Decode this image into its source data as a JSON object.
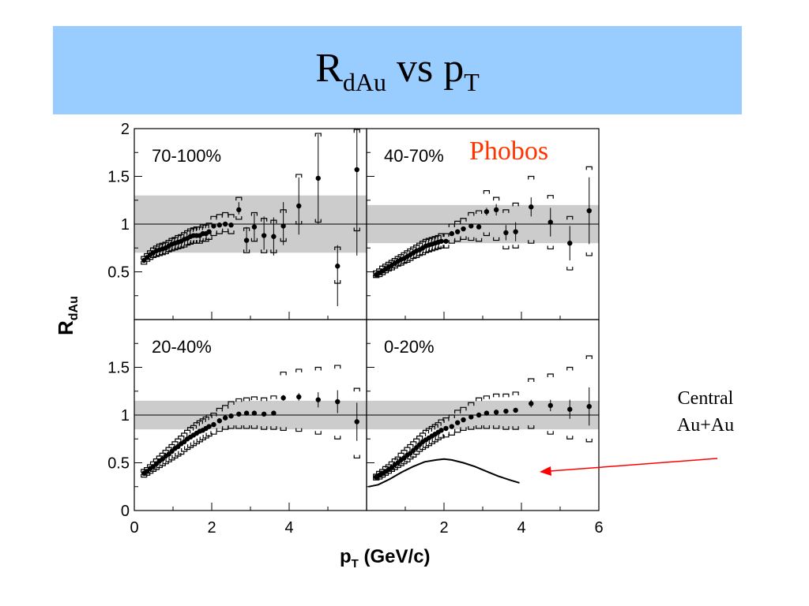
{
  "slide": {
    "title_main": "R",
    "title_sub": "dAu",
    "title_mid": " vs p",
    "title_sub2": "T",
    "phobos_label": "Phobos",
    "phobos_color": "#ff3300",
    "banner_color": "#99ccff",
    "annotation_line1": "Central",
    "annotation_line2": "Au+Au",
    "arrow_color": "#ff0000"
  },
  "chart_data": {
    "type": "scatter",
    "xlabel": "p",
    "xlabel_sub": "T",
    "xlabel_units": " (GeV/c)",
    "ylabel": "R",
    "ylabel_sub": "dAu",
    "xlim": [
      0,
      6
    ],
    "panels": [
      {
        "label": "70-100%",
        "ylim": [
          0,
          2
        ],
        "ytick_labels": [
          "0.5",
          "1",
          "1.5",
          "2"
        ],
        "yticks": [
          0.5,
          1,
          1.5,
          2
        ],
        "band": [
          0.7,
          1.3
        ],
        "x": [
          0.25,
          0.33,
          0.41,
          0.49,
          0.57,
          0.65,
          0.73,
          0.81,
          0.89,
          0.97,
          1.05,
          1.13,
          1.21,
          1.29,
          1.37,
          1.45,
          1.53,
          1.61,
          1.69,
          1.77,
          1.85,
          1.93,
          2.05,
          2.2,
          2.35,
          2.5,
          2.7,
          2.9,
          3.1,
          3.35,
          3.6,
          3.85,
          4.25,
          4.75,
          5.25,
          5.75
        ],
        "y": [
          0.62,
          0.65,
          0.68,
          0.7,
          0.72,
          0.73,
          0.74,
          0.75,
          0.77,
          0.79,
          0.8,
          0.81,
          0.82,
          0.84,
          0.85,
          0.87,
          0.88,
          0.88,
          0.88,
          0.9,
          0.9,
          0.92,
          0.98,
          0.99,
          1.0,
          0.99,
          1.15,
          0.83,
          0.97,
          0.88,
          0.87,
          0.98,
          1.19,
          1.48,
          0.56,
          1.57
        ],
        "err_lo": [
          0,
          0,
          0,
          0,
          0,
          0,
          0,
          0,
          0,
          0,
          0,
          0,
          0,
          0,
          0,
          0,
          0,
          0,
          0,
          0,
          0,
          0,
          0,
          0,
          0,
          0,
          0.05,
          0.12,
          0.15,
          0.15,
          0.2,
          0.2,
          0.3,
          0.48,
          0.42,
          0.9
        ],
        "err_hi": [
          0,
          0,
          0,
          0,
          0,
          0,
          0,
          0,
          0,
          0,
          0,
          0,
          0,
          0,
          0,
          0,
          0,
          0,
          0,
          0,
          0,
          0,
          0,
          0,
          0,
          0,
          0.08,
          0.14,
          0.14,
          0.2,
          0.2,
          0.25,
          0.3,
          0.46,
          0.22,
          0.42
        ],
        "sys_lo": [
          0.58,
          0.61,
          0.63,
          0.65,
          0.66,
          0.67,
          0.68,
          0.69,
          0.71,
          0.72,
          0.73,
          0.74,
          0.75,
          0.76,
          0.78,
          0.79,
          0.8,
          0.8,
          0.8,
          0.82,
          0.82,
          0.84,
          0.88,
          0.9,
          0.92,
          0.9,
          1.05,
          0.7,
          0.82,
          0.7,
          0.7,
          0.82,
          1.0,
          1.02,
          0.38,
          0.93
        ],
        "sys_hi": [
          0.66,
          0.69,
          0.72,
          0.75,
          0.77,
          0.79,
          0.8,
          0.81,
          0.83,
          0.85,
          0.86,
          0.88,
          0.89,
          0.91,
          0.93,
          0.95,
          0.96,
          0.97,
          0.97,
          0.99,
          0.99,
          1.01,
          1.08,
          1.1,
          1.12,
          1.1,
          1.28,
          0.96,
          1.12,
          1.06,
          1.04,
          1.15,
          1.52,
          1.95,
          0.76,
          1.99
        ]
      },
      {
        "label": "40-70%",
        "ylim": [
          0,
          2
        ],
        "ytick_labels": [],
        "yticks": [
          0.5,
          1,
          1.5,
          2
        ],
        "band": [
          0.8,
          1.2
        ],
        "x": [
          0.25,
          0.33,
          0.41,
          0.49,
          0.57,
          0.65,
          0.73,
          0.81,
          0.89,
          0.97,
          1.05,
          1.13,
          1.21,
          1.29,
          1.37,
          1.45,
          1.53,
          1.61,
          1.69,
          1.77,
          1.85,
          1.93,
          2.05,
          2.2,
          2.35,
          2.5,
          2.7,
          2.9,
          3.1,
          3.35,
          3.6,
          3.85,
          4.25,
          4.75,
          5.25,
          5.75
        ],
        "y": [
          0.47,
          0.49,
          0.51,
          0.53,
          0.55,
          0.57,
          0.59,
          0.61,
          0.63,
          0.64,
          0.66,
          0.68,
          0.7,
          0.72,
          0.73,
          0.75,
          0.77,
          0.78,
          0.79,
          0.8,
          0.81,
          0.82,
          0.82,
          0.9,
          0.92,
          0.95,
          0.98,
          0.97,
          1.13,
          1.15,
          0.91,
          0.92,
          1.18,
          1.02,
          0.8,
          1.14
        ],
        "err_lo": [
          0,
          0,
          0,
          0,
          0,
          0,
          0,
          0,
          0,
          0,
          0,
          0,
          0,
          0,
          0,
          0,
          0,
          0,
          0,
          0,
          0,
          0,
          0,
          0,
          0,
          0,
          0,
          0,
          0.04,
          0.06,
          0.08,
          0.1,
          0.1,
          0.15,
          0.18,
          0.35
        ],
        "err_hi": [
          0,
          0,
          0,
          0,
          0,
          0,
          0,
          0,
          0,
          0,
          0,
          0,
          0,
          0,
          0,
          0,
          0,
          0,
          0,
          0,
          0,
          0,
          0,
          0,
          0,
          0,
          0,
          0,
          0.04,
          0.06,
          0.08,
          0.1,
          0.1,
          0.15,
          0.18,
          0.35
        ],
        "sys_lo": [
          0.44,
          0.45,
          0.47,
          0.49,
          0.51,
          0.52,
          0.54,
          0.56,
          0.57,
          0.59,
          0.6,
          0.62,
          0.64,
          0.65,
          0.67,
          0.68,
          0.7,
          0.71,
          0.72,
          0.73,
          0.74,
          0.75,
          0.75,
          0.8,
          0.82,
          0.84,
          0.83,
          0.82,
          0.88,
          0.83,
          0.74,
          0.75,
          0.8,
          0.74,
          0.52,
          0.67
        ],
        "sys_hi": [
          0.51,
          0.53,
          0.56,
          0.58,
          0.6,
          0.62,
          0.64,
          0.66,
          0.68,
          0.7,
          0.72,
          0.74,
          0.76,
          0.78,
          0.8,
          0.82,
          0.84,
          0.85,
          0.86,
          0.87,
          0.88,
          0.9,
          0.9,
          1.0,
          1.03,
          1.06,
          1.12,
          1.14,
          1.35,
          1.28,
          1.15,
          1.22,
          1.5,
          1.3,
          1.08,
          1.6
        ]
      },
      {
        "label": "20-40%",
        "ylim": [
          0,
          2
        ],
        "ytick_labels": [
          "0",
          "0.5",
          "1",
          "1.5"
        ],
        "yticks": [
          0,
          0.5,
          1,
          1.5
        ],
        "band": [
          0.85,
          1.15
        ],
        "x": [
          0.25,
          0.33,
          0.41,
          0.49,
          0.57,
          0.65,
          0.73,
          0.81,
          0.89,
          0.97,
          1.05,
          1.13,
          1.21,
          1.29,
          1.37,
          1.45,
          1.53,
          1.61,
          1.69,
          1.77,
          1.85,
          1.93,
          2.05,
          2.2,
          2.35,
          2.5,
          2.7,
          2.9,
          3.1,
          3.35,
          3.6,
          3.85,
          4.25,
          4.75,
          5.25,
          5.75
        ],
        "y": [
          0.39,
          0.41,
          0.44,
          0.46,
          0.49,
          0.52,
          0.54,
          0.57,
          0.59,
          0.62,
          0.65,
          0.67,
          0.7,
          0.72,
          0.75,
          0.77,
          0.79,
          0.81,
          0.83,
          0.84,
          0.86,
          0.88,
          0.9,
          0.94,
          0.97,
          0.99,
          1.01,
          1.02,
          1.02,
          1.01,
          1.02,
          1.18,
          1.19,
          1.16,
          1.14,
          0.93
        ],
        "err_lo": [
          0,
          0,
          0,
          0,
          0,
          0,
          0,
          0,
          0,
          0,
          0,
          0,
          0,
          0,
          0,
          0,
          0,
          0,
          0,
          0,
          0,
          0,
          0,
          0,
          0,
          0,
          0,
          0,
          0,
          0,
          0,
          0.03,
          0.04,
          0.08,
          0.12,
          0.2
        ],
        "err_hi": [
          0,
          0,
          0,
          0,
          0,
          0,
          0,
          0,
          0,
          0,
          0,
          0,
          0,
          0,
          0,
          0,
          0,
          0,
          0,
          0,
          0,
          0,
          0,
          0,
          0,
          0,
          0,
          0,
          0,
          0,
          0,
          0.03,
          0.04,
          0.08,
          0.12,
          0.2
        ],
        "sys_lo": [
          0.35,
          0.37,
          0.39,
          0.41,
          0.43,
          0.45,
          0.47,
          0.49,
          0.51,
          0.53,
          0.55,
          0.57,
          0.59,
          0.62,
          0.64,
          0.66,
          0.68,
          0.7,
          0.72,
          0.74,
          0.76,
          0.78,
          0.8,
          0.83,
          0.85,
          0.86,
          0.86,
          0.86,
          0.86,
          0.85,
          0.85,
          0.84,
          0.83,
          0.8,
          0.75,
          0.55
        ],
        "sys_hi": [
          0.43,
          0.45,
          0.48,
          0.51,
          0.54,
          0.57,
          0.6,
          0.63,
          0.66,
          0.69,
          0.72,
          0.75,
          0.78,
          0.81,
          0.84,
          0.87,
          0.89,
          0.92,
          0.94,
          0.96,
          0.98,
          1.0,
          1.02,
          1.07,
          1.1,
          1.14,
          1.17,
          1.18,
          1.19,
          1.18,
          1.2,
          1.45,
          1.48,
          1.5,
          1.52,
          1.28
        ]
      },
      {
        "label": "0-20%",
        "ylim": [
          0,
          2
        ],
        "ytick_labels": [],
        "yticks": [
          0,
          0.5,
          1,
          1.5
        ],
        "band": [
          0.85,
          1.15
        ],
        "x": [
          0.25,
          0.33,
          0.41,
          0.49,
          0.57,
          0.65,
          0.73,
          0.81,
          0.89,
          0.97,
          1.05,
          1.13,
          1.21,
          1.29,
          1.37,
          1.45,
          1.53,
          1.61,
          1.69,
          1.77,
          1.85,
          1.93,
          2.05,
          2.2,
          2.35,
          2.5,
          2.7,
          2.9,
          3.1,
          3.35,
          3.6,
          3.85,
          4.25,
          4.75,
          5.25,
          5.75
        ],
        "y": [
          0.35,
          0.37,
          0.39,
          0.41,
          0.43,
          0.45,
          0.48,
          0.5,
          0.53,
          0.55,
          0.58,
          0.6,
          0.63,
          0.66,
          0.69,
          0.72,
          0.74,
          0.76,
          0.78,
          0.8,
          0.82,
          0.84,
          0.86,
          0.88,
          0.92,
          0.95,
          0.98,
          1.0,
          1.02,
          1.03,
          1.04,
          1.05,
          1.12,
          1.1,
          1.06,
          1.09
        ],
        "err_lo": [
          0,
          0,
          0,
          0,
          0,
          0,
          0,
          0,
          0,
          0,
          0,
          0,
          0,
          0,
          0,
          0,
          0,
          0,
          0,
          0,
          0,
          0,
          0,
          0,
          0,
          0,
          0,
          0,
          0,
          0,
          0,
          0,
          0.04,
          0.06,
          0.1,
          0.2
        ],
        "err_hi": [
          0,
          0,
          0,
          0,
          0,
          0,
          0,
          0,
          0,
          0,
          0,
          0,
          0,
          0,
          0,
          0,
          0,
          0,
          0,
          0,
          0,
          0,
          0,
          0,
          0,
          0,
          0,
          0,
          0,
          0,
          0,
          0,
          0.04,
          0.06,
          0.1,
          0.2
        ],
        "sys_lo": [
          0.32,
          0.33,
          0.35,
          0.37,
          0.39,
          0.41,
          0.43,
          0.45,
          0.47,
          0.49,
          0.51,
          0.54,
          0.56,
          0.59,
          0.62,
          0.64,
          0.66,
          0.68,
          0.7,
          0.72,
          0.74,
          0.76,
          0.77,
          0.79,
          0.82,
          0.84,
          0.85,
          0.86,
          0.86,
          0.86,
          0.85,
          0.85,
          0.86,
          0.8,
          0.75,
          0.72
        ],
        "sys_hi": [
          0.38,
          0.41,
          0.43,
          0.46,
          0.48,
          0.51,
          0.54,
          0.56,
          0.6,
          0.63,
          0.66,
          0.69,
          0.72,
          0.75,
          0.78,
          0.81,
          0.84,
          0.86,
          0.88,
          0.9,
          0.92,
          0.95,
          0.97,
          1.0,
          1.05,
          1.08,
          1.13,
          1.18,
          1.2,
          1.22,
          1.22,
          1.24,
          1.38,
          1.43,
          1.5,
          1.62
        ],
        "curve": {
          "x": [
            0.05,
            0.3,
            0.6,
            0.9,
            1.2,
            1.5,
            1.8,
            2.0,
            2.2,
            2.5,
            2.8,
            3.1,
            3.4,
            3.7,
            3.95
          ],
          "y": [
            0.25,
            0.27,
            0.33,
            0.4,
            0.46,
            0.51,
            0.53,
            0.54,
            0.53,
            0.5,
            0.46,
            0.41,
            0.36,
            0.32,
            0.29
          ]
        }
      }
    ],
    "xtick_labels_left": [
      "0",
      "2",
      "4"
    ],
    "xtick_values_left": [
      0,
      2,
      4
    ],
    "xtick_labels_right": [
      "2",
      "4",
      "6"
    ],
    "xtick_values_right": [
      2,
      4,
      6
    ]
  }
}
